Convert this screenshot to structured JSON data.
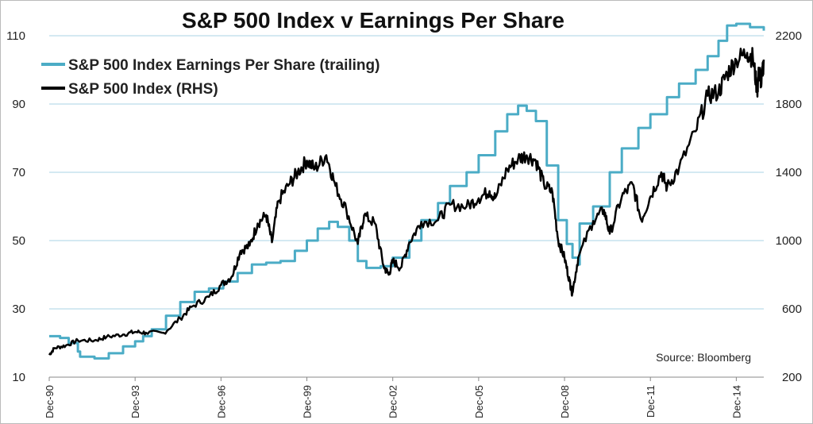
{
  "chart_data": {
    "type": "line",
    "title": "S&P 500 Index v Earnings Per Share",
    "source": "Source: Bloomberg",
    "legend_position": "top-left",
    "grid": "horizontal",
    "x_tick_labels": [
      "Dec-90",
      "Dec-93",
      "Dec-96",
      "Dec-99",
      "Dec-02",
      "Dec-05",
      "Dec-08",
      "Dec-11",
      "Dec-14"
    ],
    "x_tick_years": [
      1990.92,
      1993.92,
      1996.92,
      1999.92,
      2002.92,
      2005.92,
      2008.92,
      2011.92,
      2014.92
    ],
    "xlim": [
      1990.92,
      2015.88
    ],
    "y_left": {
      "min": 10,
      "max": 110,
      "ticks": [
        10,
        30,
        50,
        70,
        90,
        110
      ]
    },
    "y_right": {
      "min": 200,
      "max": 2200,
      "ticks": [
        200,
        600,
        1000,
        1400,
        1800,
        2200
      ]
    },
    "series": [
      {
        "name": "S&P 500 Index Earnings Per Share (trailing)",
        "axis": "left",
        "color": "#4bacc6",
        "points": [
          [
            1990.92,
            22.0
          ],
          [
            1991.3,
            21.5
          ],
          [
            1991.6,
            20.0
          ],
          [
            1991.92,
            17.5
          ],
          [
            1992.0,
            16.0
          ],
          [
            1992.5,
            15.5
          ],
          [
            1993.0,
            17.0
          ],
          [
            1993.5,
            19.0
          ],
          [
            1993.92,
            20.5
          ],
          [
            1994.2,
            22.0
          ],
          [
            1994.5,
            24.0
          ],
          [
            1995.0,
            28.0
          ],
          [
            1995.5,
            32.0
          ],
          [
            1996.0,
            35.0
          ],
          [
            1996.5,
            36.0
          ],
          [
            1997.0,
            38.0
          ],
          [
            1997.5,
            40.5
          ],
          [
            1998.0,
            43.0
          ],
          [
            1998.5,
            43.5
          ],
          [
            1999.0,
            44.0
          ],
          [
            1999.5,
            47.0
          ],
          [
            1999.92,
            50.0
          ],
          [
            2000.3,
            53.5
          ],
          [
            2000.7,
            55.5
          ],
          [
            2001.0,
            54.0
          ],
          [
            2001.4,
            50.0
          ],
          [
            2001.7,
            44.0
          ],
          [
            2002.0,
            42.0
          ],
          [
            2002.5,
            42.5
          ],
          [
            2002.92,
            45.0
          ],
          [
            2003.5,
            50.0
          ],
          [
            2003.92,
            56.0
          ],
          [
            2004.5,
            61.0
          ],
          [
            2004.92,
            66.0
          ],
          [
            2005.5,
            70.0
          ],
          [
            2005.92,
            75.0
          ],
          [
            2006.5,
            82.0
          ],
          [
            2006.92,
            87.0
          ],
          [
            2007.3,
            89.5
          ],
          [
            2007.6,
            88.0
          ],
          [
            2007.92,
            85.0
          ],
          [
            2008.3,
            72.0
          ],
          [
            2008.7,
            56.0
          ],
          [
            2009.0,
            49.0
          ],
          [
            2009.2,
            45.0
          ],
          [
            2009.42,
            43.0
          ],
          [
            2009.45,
            55.0
          ],
          [
            2009.92,
            60.0
          ],
          [
            2010.5,
            70.0
          ],
          [
            2010.92,
            77.0
          ],
          [
            2011.5,
            83.0
          ],
          [
            2011.92,
            87.0
          ],
          [
            2012.5,
            92.0
          ],
          [
            2012.92,
            96.0
          ],
          [
            2013.5,
            100.0
          ],
          [
            2013.92,
            104.0
          ],
          [
            2014.3,
            108.5
          ],
          [
            2014.6,
            113.0
          ],
          [
            2014.92,
            113.5
          ],
          [
            2015.4,
            112.5
          ],
          [
            2015.88,
            111.5
          ]
        ]
      },
      {
        "name": "S&P 500 Index (RHS)",
        "axis": "right",
        "color": "#000000",
        "points": [
          [
            1990.92,
            330
          ],
          [
            1991.1,
            370
          ],
          [
            1991.5,
            385
          ],
          [
            1991.92,
            415
          ],
          [
            1992.5,
            415
          ],
          [
            1992.92,
            435
          ],
          [
            1993.5,
            450
          ],
          [
            1993.92,
            465
          ],
          [
            1994.3,
            460
          ],
          [
            1994.92,
            459
          ],
          [
            1995.5,
            545
          ],
          [
            1995.92,
            615
          ],
          [
            1996.5,
            670
          ],
          [
            1996.92,
            740
          ],
          [
            1997.3,
            790
          ],
          [
            1997.6,
            940
          ],
          [
            1997.92,
            970
          ],
          [
            1998.2,
            1100
          ],
          [
            1998.5,
            1150
          ],
          [
            1998.7,
            990
          ],
          [
            1998.92,
            1230
          ],
          [
            1999.3,
            1330
          ],
          [
            1999.6,
            1400
          ],
          [
            1999.92,
            1469
          ],
          [
            2000.2,
            1420
          ],
          [
            2000.6,
            1500
          ],
          [
            2000.92,
            1320
          ],
          [
            2001.3,
            1180
          ],
          [
            2001.7,
            980
          ],
          [
            2001.92,
            1148
          ],
          [
            2002.3,
            1100
          ],
          [
            2002.6,
            850
          ],
          [
            2002.78,
            800
          ],
          [
            2002.92,
            880
          ],
          [
            2003.2,
            840
          ],
          [
            2003.5,
            990
          ],
          [
            2003.92,
            1110
          ],
          [
            2004.5,
            1120
          ],
          [
            2004.92,
            1210
          ],
          [
            2005.5,
            1200
          ],
          [
            2005.92,
            1248
          ],
          [
            2006.3,
            1290
          ],
          [
            2006.5,
            1250
          ],
          [
            2006.92,
            1418
          ],
          [
            2007.3,
            1480
          ],
          [
            2007.6,
            1500
          ],
          [
            2007.92,
            1468
          ],
          [
            2008.2,
            1330
          ],
          [
            2008.5,
            1280
          ],
          [
            2008.7,
            1000
          ],
          [
            2008.92,
            900
          ],
          [
            2009.1,
            760
          ],
          [
            2009.19,
            690
          ],
          [
            2009.4,
            900
          ],
          [
            2009.92,
            1115
          ],
          [
            2010.3,
            1180
          ],
          [
            2010.5,
            1040
          ],
          [
            2010.92,
            1257
          ],
          [
            2011.3,
            1330
          ],
          [
            2011.6,
            1120
          ],
          [
            2011.92,
            1258
          ],
          [
            2012.3,
            1400
          ],
          [
            2012.5,
            1310
          ],
          [
            2012.92,
            1426
          ],
          [
            2013.5,
            1640
          ],
          [
            2013.92,
            1848
          ],
          [
            2014.3,
            1870
          ],
          [
            2014.6,
            1980
          ],
          [
            2014.92,
            2058
          ],
          [
            2015.3,
            2100
          ],
          [
            2015.5,
            2070
          ],
          [
            2015.65,
            1880
          ],
          [
            2015.72,
            2000
          ],
          [
            2015.8,
            1920
          ],
          [
            2015.88,
            2060
          ]
        ]
      }
    ]
  }
}
